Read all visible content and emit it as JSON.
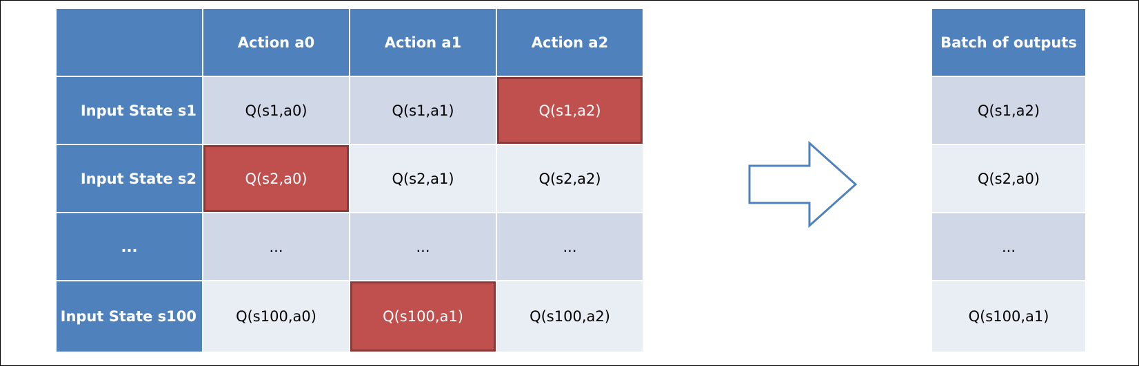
{
  "q_table": {
    "columns": [
      "",
      "Action a0",
      "Action a1",
      "Action a2"
    ],
    "rows": [
      {
        "label": "Input State s1",
        "cells": [
          "Q(s1,a0)",
          "Q(s1,a1)",
          "Q(s1,a2)"
        ],
        "selected_index": 2
      },
      {
        "label": "Input State s2",
        "cells": [
          "Q(s2,a0)",
          "Q(s2,a1)",
          "Q(s2,a2)"
        ],
        "selected_index": 0
      },
      {
        "label": "...",
        "cells": [
          "...",
          "...",
          "..."
        ],
        "selected_index": null
      },
      {
        "label": "Input State s100",
        "cells": [
          "Q(s100,a0)",
          "Q(s100,a1)",
          "Q(s100,a2)"
        ],
        "selected_index": 1
      }
    ]
  },
  "arrow": {
    "icon": "right-arrow-icon",
    "fill": "#ffffff",
    "stroke": "#4f81bd"
  },
  "output_table": {
    "header": "Batch of outputs",
    "rows": [
      "Q(s1,a2)",
      "Q(s2,a0)",
      "...",
      "Q(s100,a1)"
    ]
  },
  "colors": {
    "header_blue": "#4f81bd",
    "cell_dark": "#d0d8e8",
    "cell_light": "#e9edf4",
    "selected_red": "#c0504d"
  }
}
